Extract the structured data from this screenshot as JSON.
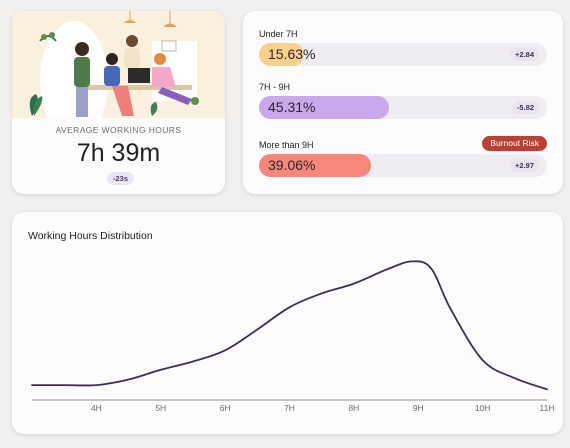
{
  "average_card": {
    "label": "AVERAGE WORKING HOURS",
    "value": "7h 39m",
    "delta": "-23s"
  },
  "hour_split": {
    "items": [
      {
        "title": "Under 7H",
        "percent_text": "15.63%",
        "percent": 15.63,
        "delta": "+2.84",
        "color": "#f9d18a"
      },
      {
        "title": "7H - 9H",
        "percent_text": "45.31%",
        "percent": 45.31,
        "delta": "-5.82",
        "color": "#caa8ec"
      },
      {
        "title": "More than 9H",
        "percent_text": "39.06%",
        "percent": 39.06,
        "delta": "+2.97",
        "color": "#f7877a",
        "badge": "Burnout Risk"
      }
    ]
  },
  "distribution": {
    "title": "Working Hours Distribution"
  },
  "chart_data": {
    "type": "line",
    "title": "Working Hours Distribution",
    "xlabel": "",
    "ylabel": "",
    "x_ticks": [
      "4H",
      "5H",
      "6H",
      "7H",
      "8H",
      "9H",
      "10H",
      "11H"
    ],
    "x_range": [
      3,
      11
    ],
    "y_range": [
      0,
      100
    ],
    "grid": false,
    "line_color": "#3f2d59",
    "points": [
      {
        "x": 3.0,
        "y": 10
      },
      {
        "x": 3.5,
        "y": 10
      },
      {
        "x": 4.0,
        "y": 10
      },
      {
        "x": 4.5,
        "y": 14
      },
      {
        "x": 5.0,
        "y": 21
      },
      {
        "x": 5.5,
        "y": 27
      },
      {
        "x": 6.0,
        "y": 35
      },
      {
        "x": 6.5,
        "y": 50
      },
      {
        "x": 7.0,
        "y": 66
      },
      {
        "x": 7.5,
        "y": 76
      },
      {
        "x": 8.0,
        "y": 83
      },
      {
        "x": 8.5,
        "y": 93
      },
      {
        "x": 8.9,
        "y": 99
      },
      {
        "x": 9.2,
        "y": 94
      },
      {
        "x": 9.5,
        "y": 65
      },
      {
        "x": 10.0,
        "y": 28
      },
      {
        "x": 10.5,
        "y": 15
      },
      {
        "x": 11.0,
        "y": 7
      }
    ]
  },
  "colors": {
    "accent": "#3f2d59",
    "burnout": "#b84133"
  }
}
